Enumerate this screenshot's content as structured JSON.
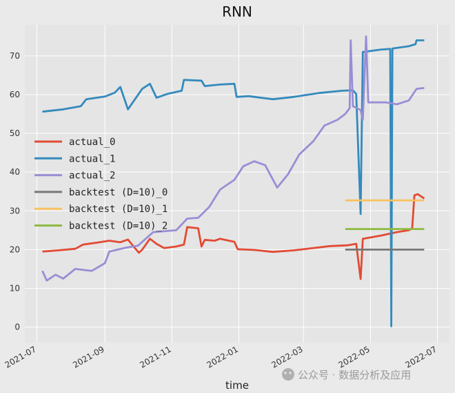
{
  "chart_data": {
    "type": "line",
    "title": "RNN",
    "xlabel": "time",
    "ylabel": "",
    "grid": true,
    "legend_position": "center-left",
    "ylim": [
      -4,
      78
    ],
    "xlim": [
      "2021-06-20",
      "2022-07-12"
    ],
    "y_ticks": [
      0,
      10,
      20,
      30,
      40,
      50,
      60,
      70
    ],
    "x_ticks": [
      {
        "date": "2021-07-01",
        "label": "2021-07"
      },
      {
        "date": "2021-09-01",
        "label": "2021-09"
      },
      {
        "date": "2021-11-01",
        "label": "2021-11"
      },
      {
        "date": "2022-01-01",
        "label": "2022-01"
      },
      {
        "date": "2022-03-01",
        "label": "2022-03"
      },
      {
        "date": "2022-05-01",
        "label": "2022-05"
      },
      {
        "date": "2022-07-01",
        "label": "2022-07"
      }
    ],
    "series": [
      {
        "name": "actual_0",
        "color": "#e24a33",
        "points": [
          [
            "2021-07-06",
            19.5
          ],
          [
            "2021-07-20",
            19.8
          ],
          [
            "2021-08-05",
            20.2
          ],
          [
            "2021-08-12",
            21.3
          ],
          [
            "2021-08-25",
            21.8
          ],
          [
            "2021-09-05",
            22.3
          ],
          [
            "2021-09-15",
            21.9
          ],
          [
            "2021-09-22",
            22.6
          ],
          [
            "2021-09-28",
            20.5
          ],
          [
            "2021-10-02",
            19.2
          ],
          [
            "2021-10-05",
            20.0
          ],
          [
            "2021-10-12",
            22.8
          ],
          [
            "2021-10-18",
            21.5
          ],
          [
            "2021-10-25",
            20.4
          ],
          [
            "2021-11-05",
            20.8
          ],
          [
            "2021-11-12",
            21.3
          ],
          [
            "2021-11-15",
            25.8
          ],
          [
            "2021-11-25",
            25.5
          ],
          [
            "2021-11-28",
            20.8
          ],
          [
            "2021-12-01",
            22.5
          ],
          [
            "2021-12-10",
            22.3
          ],
          [
            "2021-12-15",
            22.8
          ],
          [
            "2021-12-28",
            22.0
          ],
          [
            "2021-12-31",
            20.1
          ],
          [
            "2022-01-15",
            19.9
          ],
          [
            "2022-02-01",
            19.4
          ],
          [
            "2022-02-20",
            19.8
          ],
          [
            "2022-03-10",
            20.4
          ],
          [
            "2022-03-25",
            20.9
          ],
          [
            "2022-04-10",
            21.1
          ],
          [
            "2022-04-18",
            21.5
          ],
          [
            "2022-04-22",
            12.4
          ],
          [
            "2022-04-24",
            22.8
          ],
          [
            "2022-05-10",
            23.6
          ],
          [
            "2022-05-25",
            24.5
          ],
          [
            "2022-06-05",
            25.0
          ],
          [
            "2022-06-08",
            25.5
          ],
          [
            "2022-06-10",
            34.0
          ],
          [
            "2022-06-13",
            34.3
          ],
          [
            "2022-06-19",
            33.2
          ]
        ]
      },
      {
        "name": "actual_1",
        "color": "#348abd",
        "points": [
          [
            "2021-07-06",
            55.6
          ],
          [
            "2021-07-25",
            56.2
          ],
          [
            "2021-08-10",
            57.0
          ],
          [
            "2021-08-15",
            58.8
          ],
          [
            "2021-09-01",
            59.5
          ],
          [
            "2021-09-10",
            60.5
          ],
          [
            "2021-09-15",
            62.0
          ],
          [
            "2021-09-22",
            56.2
          ],
          [
            "2021-10-05",
            61.5
          ],
          [
            "2021-10-12",
            62.8
          ],
          [
            "2021-10-18",
            59.2
          ],
          [
            "2021-10-28",
            60.2
          ],
          [
            "2021-11-10",
            61.0
          ],
          [
            "2021-11-12",
            63.8
          ],
          [
            "2021-11-28",
            63.6
          ],
          [
            "2021-12-01",
            62.2
          ],
          [
            "2021-12-15",
            62.6
          ],
          [
            "2021-12-28",
            62.8
          ],
          [
            "2021-12-30",
            59.4
          ],
          [
            "2022-01-10",
            59.6
          ],
          [
            "2022-02-01",
            58.8
          ],
          [
            "2022-02-20",
            59.4
          ],
          [
            "2022-03-15",
            60.4
          ],
          [
            "2022-04-05",
            61.0
          ],
          [
            "2022-04-15",
            61.1
          ],
          [
            "2022-04-18",
            60.2
          ],
          [
            "2022-04-22",
            29.2
          ],
          [
            "2022-04-24",
            71.0
          ],
          [
            "2022-05-10",
            71.6
          ],
          [
            "2022-05-19",
            71.8
          ],
          [
            "2022-05-20",
            0.2
          ],
          [
            "2022-05-21",
            71.9
          ],
          [
            "2022-06-05",
            72.5
          ],
          [
            "2022-06-11",
            73.0
          ],
          [
            "2022-06-12",
            74.0
          ],
          [
            "2022-06-19",
            74.0
          ]
        ]
      },
      {
        "name": "actual_2",
        "color": "#988ed5",
        "points": [
          [
            "2021-07-06",
            14.5
          ],
          [
            "2021-07-10",
            12.0
          ],
          [
            "2021-07-18",
            13.5
          ],
          [
            "2021-07-25",
            12.5
          ],
          [
            "2021-08-05",
            15.0
          ],
          [
            "2021-08-20",
            14.5
          ],
          [
            "2021-09-01",
            16.5
          ],
          [
            "2021-09-05",
            19.5
          ],
          [
            "2021-09-20",
            20.5
          ],
          [
            "2021-10-01",
            21.0
          ],
          [
            "2021-10-15",
            24.5
          ],
          [
            "2021-11-05",
            25.0
          ],
          [
            "2021-11-15",
            28.0
          ],
          [
            "2021-11-25",
            28.2
          ],
          [
            "2021-12-05",
            31.0
          ],
          [
            "2021-12-15",
            35.5
          ],
          [
            "2021-12-28",
            38.0
          ],
          [
            "2022-01-05",
            41.5
          ],
          [
            "2022-01-15",
            42.8
          ],
          [
            "2022-01-25",
            41.8
          ],
          [
            "2022-02-05",
            36.0
          ],
          [
            "2022-02-15",
            39.5
          ],
          [
            "2022-02-25",
            44.5
          ],
          [
            "2022-03-10",
            48.0
          ],
          [
            "2022-03-20",
            52.0
          ],
          [
            "2022-04-01",
            53.5
          ],
          [
            "2022-04-08",
            55.0
          ],
          [
            "2022-04-12",
            56.5
          ],
          [
            "2022-04-13",
            74.0
          ],
          [
            "2022-04-15",
            57.0
          ],
          [
            "2022-04-22",
            56.0
          ],
          [
            "2022-04-24",
            53.5
          ],
          [
            "2022-04-27",
            75.0
          ],
          [
            "2022-04-29",
            58.0
          ],
          [
            "2022-05-15",
            58.0
          ],
          [
            "2022-05-25",
            57.5
          ],
          [
            "2022-06-05",
            58.5
          ],
          [
            "2022-06-12",
            61.5
          ],
          [
            "2022-06-19",
            61.7
          ]
        ]
      },
      {
        "name": "backtest (D=10)_0",
        "color": "#777777",
        "points": [
          [
            "2022-04-08",
            20.0
          ],
          [
            "2022-06-19",
            20.0
          ]
        ]
      },
      {
        "name": "backtest (D=10)_1",
        "color": "#fbc15e",
        "points": [
          [
            "2022-04-08",
            32.7
          ],
          [
            "2022-06-19",
            32.7
          ]
        ]
      },
      {
        "name": "backtest (D=10)_2",
        "color": "#8eba42",
        "points": [
          [
            "2022-04-08",
            25.3
          ],
          [
            "2022-06-19",
            25.3
          ]
        ]
      }
    ]
  },
  "watermark": "公众号 · 数据分析及应用"
}
